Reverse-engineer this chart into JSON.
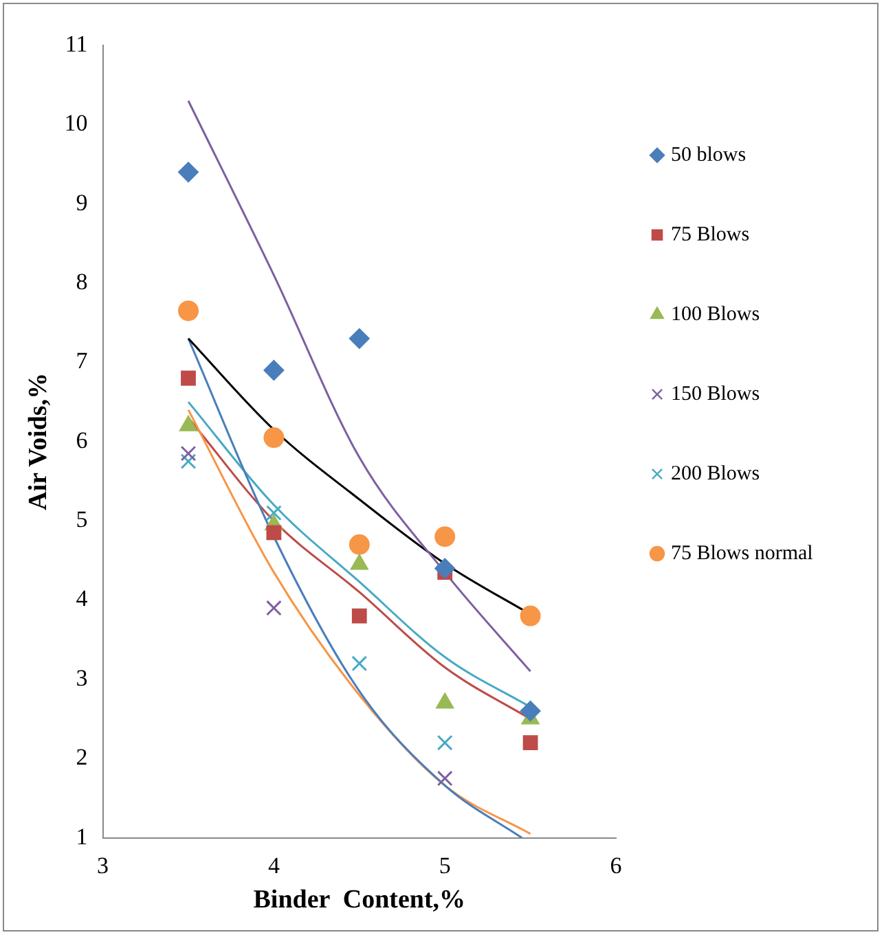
{
  "chart_data": {
    "type": "scatter",
    "xlabel": "Binder  Content,%",
    "ylabel": "Air Voids,%",
    "xlim": [
      3,
      6
    ],
    "ylim": [
      1,
      11
    ],
    "xticks": [
      3,
      4,
      5,
      6
    ],
    "yticks": [
      1,
      2,
      3,
      4,
      5,
      6,
      7,
      8,
      9,
      10,
      11
    ],
    "grid": false,
    "legend": "right",
    "x": [
      3.5,
      4,
      4.5,
      5,
      5.5
    ],
    "series": [
      {
        "name": "50 blows",
        "color": "#4a7ebb",
        "marker": "diamond",
        "values": [
          9.4,
          6.9,
          7.3,
          4.4,
          2.6
        ]
      },
      {
        "name": "75 Blows",
        "color": "#be4b48",
        "marker": "square",
        "values": [
          6.8,
          4.85,
          3.8,
          4.35,
          2.2
        ]
      },
      {
        "name": "100 Blows",
        "color": "#98b954",
        "marker": "triangle",
        "values": [
          6.2,
          4.95,
          4.45,
          2.7,
          2.5
        ]
      },
      {
        "name": "150 Blows",
        "color": "#7d60a0",
        "marker": "cross",
        "values": [
          5.85,
          3.9,
          null,
          1.75,
          null
        ]
      },
      {
        "name": "200 Blows",
        "color": "#46aac5",
        "marker": "cross",
        "values": [
          5.75,
          5.1,
          3.2,
          2.2,
          null
        ]
      },
      {
        "name": "75 Blows normal",
        "color": "#f79646",
        "marker": "circle",
        "values": [
          7.65,
          6.05,
          4.7,
          4.8,
          3.8
        ]
      },
      {
        "type": "line",
        "color": "#7d60a0",
        "marker": "none",
        "x": [
          3.5,
          4,
          4.5,
          5,
          5.5
        ],
        "values": [
          10.3,
          8.1,
          5.8,
          4.35,
          3.1
        ]
      },
      {
        "type": "line",
        "color": "#000000",
        "marker": "none",
        "x": [
          3.5,
          4,
          4.5,
          5,
          5.5
        ],
        "values": [
          7.3,
          6.15,
          5.27,
          4.46,
          3.82
        ]
      },
      {
        "type": "line",
        "color": "#4a7ebb",
        "marker": "none",
        "x": [
          3.5,
          4,
          4.5,
          5,
          5.45
        ],
        "values": [
          7.3,
          4.8,
          2.85,
          1.66,
          1.0
        ]
      },
      {
        "type": "line",
        "color": "#f79646",
        "marker": "none",
        "x": [
          3.5,
          4,
          4.5,
          5,
          5.5
        ],
        "values": [
          6.4,
          4.35,
          2.8,
          1.66,
          1.05
        ]
      },
      {
        "type": "line",
        "color": "#be4b48",
        "marker": "none",
        "x": [
          3.5,
          4,
          4.5,
          5,
          5.5
        ],
        "values": [
          6.3,
          5.0,
          4.1,
          3.15,
          2.5
        ]
      },
      {
        "type": "line",
        "color": "#46aac5",
        "marker": "none",
        "x": [
          3.5,
          4,
          4.5,
          5,
          5.5
        ],
        "values": [
          6.5,
          5.2,
          4.23,
          3.28,
          2.65
        ]
      }
    ]
  }
}
